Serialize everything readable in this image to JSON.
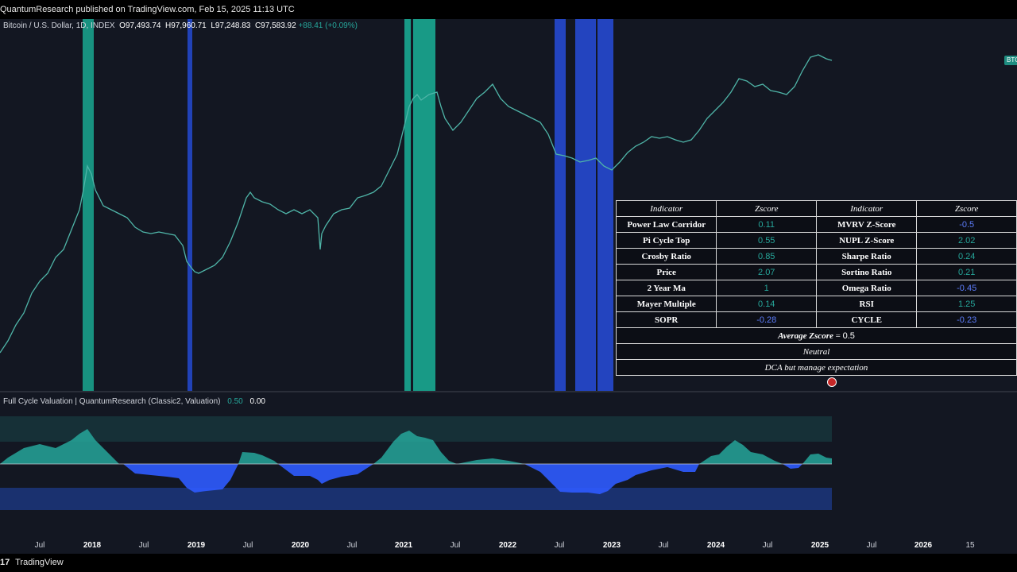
{
  "header": {
    "publish_text": "QuantumResearch published on TradingView.com, Feb 15, 2025 11:13 UTC"
  },
  "symbol": {
    "name": "Bitcoin / U.S. Dollar, 1D, INDEX",
    "open_label": "O",
    "open": "97,493.74",
    "high_label": "H",
    "high": "97,960.71",
    "low_label": "L",
    "low": "97,248.83",
    "close_label": "C",
    "close": "97,583.92",
    "change": "+88.41 (+0.09%)",
    "price_tag": "BTC"
  },
  "indicator": {
    "name": "Full Cycle Valuation | QuantumResearch (Classic2, Valuation)",
    "value1": "0.50",
    "value2": "0.00"
  },
  "table": {
    "headers": [
      "Indicator",
      "Zscore",
      "Indicator",
      "Zscore"
    ],
    "rows": [
      {
        "left_name": "Power Law Corridor",
        "left_z": "0.11",
        "left_sign": "pos",
        "right_name": "MVRV Z-Score",
        "right_z": "-0.5",
        "right_sign": "neg"
      },
      {
        "left_name": "Pi Cycle Top",
        "left_z": "0.55",
        "left_sign": "pos",
        "right_name": "NUPL Z-Score",
        "right_z": "2.02",
        "right_sign": "pos"
      },
      {
        "left_name": "Crosby Ratio",
        "left_z": "0.85",
        "left_sign": "pos",
        "right_name": "Sharpe Ratio",
        "right_z": "0.24",
        "right_sign": "pos"
      },
      {
        "left_name": "Price",
        "left_z": "2.07",
        "left_sign": "pos",
        "right_name": "Sortino Ratio",
        "right_z": "0.21",
        "right_sign": "pos"
      },
      {
        "left_name": "2 Year Ma",
        "left_z": "1",
        "left_sign": "pos",
        "right_name": "Omega Ratio",
        "right_z": "-0.45",
        "right_sign": "neg"
      },
      {
        "left_name": "Mayer Multiple",
        "left_z": "0.14",
        "left_sign": "pos",
        "right_name": "RSI",
        "right_z": "1.25",
        "right_sign": "pos"
      },
      {
        "left_name": "SOPR",
        "left_z": "-0.28",
        "left_sign": "neg",
        "right_name": "CYCLE",
        "right_z": "-0.23",
        "right_sign": "neg"
      }
    ],
    "average_label": "Average Zscore",
    "average_eq": "=",
    "average_value": "0.5",
    "state": "Neutral",
    "advice": "DCA but manage expectation"
  },
  "time_axis": [
    {
      "label": "Jul",
      "year": false
    },
    {
      "label": "2018",
      "year": true
    },
    {
      "label": "Jul",
      "year": false
    },
    {
      "label": "2019",
      "year": true
    },
    {
      "label": "Jul",
      "year": false
    },
    {
      "label": "2020",
      "year": true
    },
    {
      "label": "Jul",
      "year": false
    },
    {
      "label": "2021",
      "year": true
    },
    {
      "label": "Jul",
      "year": false
    },
    {
      "label": "2022",
      "year": true
    },
    {
      "label": "Jul",
      "year": false
    },
    {
      "label": "2023",
      "year": true
    },
    {
      "label": "Jul",
      "year": false
    },
    {
      "label": "2024",
      "year": true
    },
    {
      "label": "Jul",
      "year": false
    },
    {
      "label": "2025",
      "year": true
    },
    {
      "label": "Jul",
      "year": false
    },
    {
      "label": "2026",
      "year": true
    },
    {
      "label": "15",
      "year": false
    }
  ],
  "footer": {
    "logo": "17",
    "brand": "TradingView"
  },
  "colors": {
    "valuation_high": "#26a69a",
    "valuation_low": "#2962ff",
    "background": "#131722"
  }
}
